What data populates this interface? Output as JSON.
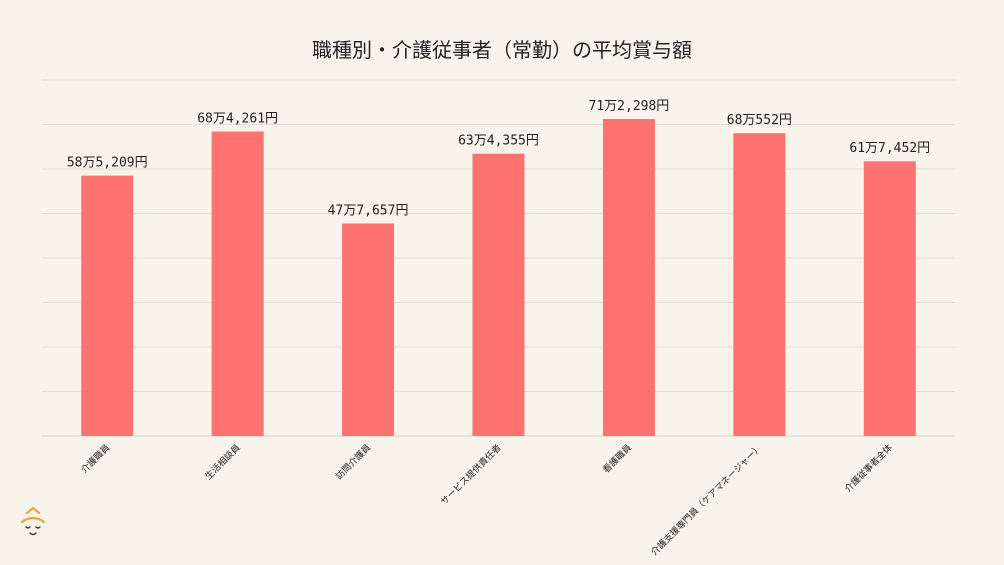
{
  "colors": {
    "background": "#f8f4ec",
    "bar": "#ff7272",
    "grid": "#e2ddd4",
    "logo": "#f3a23a"
  },
  "logo": {
    "icon": "smiling-face-logo-icon"
  },
  "chart_data": {
    "type": "bar",
    "title": "職種別・介護従事者（常勤）の平均賞与額",
    "xlabel": "",
    "ylabel": "",
    "ylim": [
      0,
      800000
    ],
    "grid": true,
    "categories": [
      "介護職員",
      "生活相談員",
      "訪問介護員",
      "サービス提供責任者",
      "看護職員",
      "介護支援専門員（ケアマネージャー）",
      "介護従事者全体"
    ],
    "values": [
      585209,
      684261,
      477657,
      634355,
      712298,
      680552,
      617452
    ],
    "data_labels": [
      "58万5,209円",
      "68万4,261円",
      "47万7,657円",
      "63万4,355円",
      "71万2,298円",
      "68万552円",
      "61万7,452円"
    ]
  }
}
